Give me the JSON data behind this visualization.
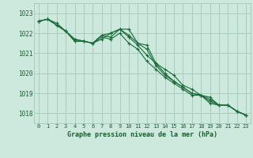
{
  "title": "Graphe pression niveau de la mer (hPa)",
  "background_color": "#cde8dd",
  "grid_color": "#a8ccbf",
  "line_color": "#1a6b3a",
  "text_color": "#1a5c30",
  "ylim": [
    1017.5,
    1023.5
  ],
  "xlim": [
    -0.5,
    23.5
  ],
  "yticks": [
    1018,
    1019,
    1020,
    1021,
    1022,
    1023
  ],
  "xticks": [
    0,
    1,
    2,
    3,
    4,
    5,
    6,
    7,
    8,
    9,
    10,
    11,
    12,
    13,
    14,
    15,
    16,
    17,
    18,
    19,
    20,
    21,
    22,
    23
  ],
  "series": [
    [
      1022.6,
      1022.7,
      1022.5,
      1022.1,
      1021.6,
      1021.6,
      1021.5,
      1021.8,
      1021.7,
      1022.0,
      1021.5,
      1021.2,
      1020.6,
      1020.2,
      1019.8,
      1019.5,
      1019.2,
      1018.9,
      1018.9,
      1018.5,
      1018.4,
      1018.4,
      1018.1,
      1017.9
    ],
    [
      1022.6,
      1022.7,
      1022.4,
      1022.1,
      1021.6,
      1021.6,
      1021.5,
      1021.7,
      1022.0,
      1022.2,
      1021.8,
      1021.4,
      1020.9,
      1020.5,
      1020.0,
      1019.6,
      1019.3,
      1019.0,
      1018.9,
      1018.6,
      1018.4,
      1018.4,
      1018.1,
      1017.9
    ],
    [
      1022.6,
      1022.7,
      1022.4,
      1022.1,
      1021.7,
      1021.6,
      1021.5,
      1021.9,
      1021.8,
      1022.2,
      1021.9,
      1021.5,
      1021.2,
      1020.4,
      1019.9,
      1019.6,
      1019.3,
      1019.0,
      1018.9,
      1018.7,
      1018.4,
      1018.4,
      1018.1,
      1017.9
    ],
    [
      1022.6,
      1022.7,
      1022.4,
      1022.1,
      1021.7,
      1021.6,
      1021.5,
      1021.9,
      1022.0,
      1022.2,
      1022.2,
      1021.5,
      1021.4,
      1020.5,
      1020.2,
      1019.9,
      1019.4,
      1019.2,
      1018.9,
      1018.8,
      1018.4,
      1018.4,
      1018.1,
      1017.9
    ]
  ]
}
